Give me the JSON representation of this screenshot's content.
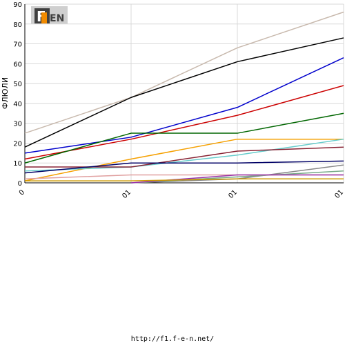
{
  "logo": {
    "text": "F1EN"
  },
  "footer": {
    "url": "http://f1.f-e-n.net/"
  },
  "chart_data": {
    "type": "line",
    "ylabel": "ФЛЮЛИ",
    "xlabel": "",
    "title": "",
    "categories": [
      "0",
      "01",
      "01",
      "01"
    ],
    "ylim": [
      0,
      90
    ],
    "yticks": [
      0,
      10,
      20,
      30,
      40,
      50,
      60,
      70,
      80,
      90
    ],
    "grid": true,
    "series": [
      {
        "color": "#c8b9ad",
        "values": [
          25,
          43,
          68,
          86
        ]
      },
      {
        "color": "#000000",
        "values": [
          18,
          43,
          61,
          73
        ]
      },
      {
        "color": "#0000cc",
        "values": [
          15,
          23,
          38,
          63
        ]
      },
      {
        "color": "#cc0000",
        "values": [
          12,
          22,
          34,
          49
        ]
      },
      {
        "color": "#006600",
        "values": [
          10,
          25,
          25,
          35
        ]
      },
      {
        "color": "#f5a000",
        "values": [
          1,
          12,
          22,
          22
        ]
      },
      {
        "color": "#66cccc",
        "values": [
          6,
          8,
          14,
          22
        ]
      },
      {
        "color": "#882233",
        "values": [
          8,
          8,
          16,
          18
        ]
      },
      {
        "color": "#000066",
        "values": [
          5,
          10,
          10,
          11
        ]
      },
      {
        "color": "#888888",
        "values": [
          null,
          0,
          2,
          9
        ]
      },
      {
        "color": "#77aa88",
        "values": [
          null,
          0,
          3,
          6
        ]
      },
      {
        "color": "#e0a0a0",
        "values": [
          2,
          4,
          4,
          4
        ]
      },
      {
        "color": "#9933aa",
        "values": [
          null,
          0,
          4,
          4
        ]
      },
      {
        "color": "#cc9900",
        "values": [
          1,
          1,
          2,
          2
        ]
      }
    ]
  }
}
